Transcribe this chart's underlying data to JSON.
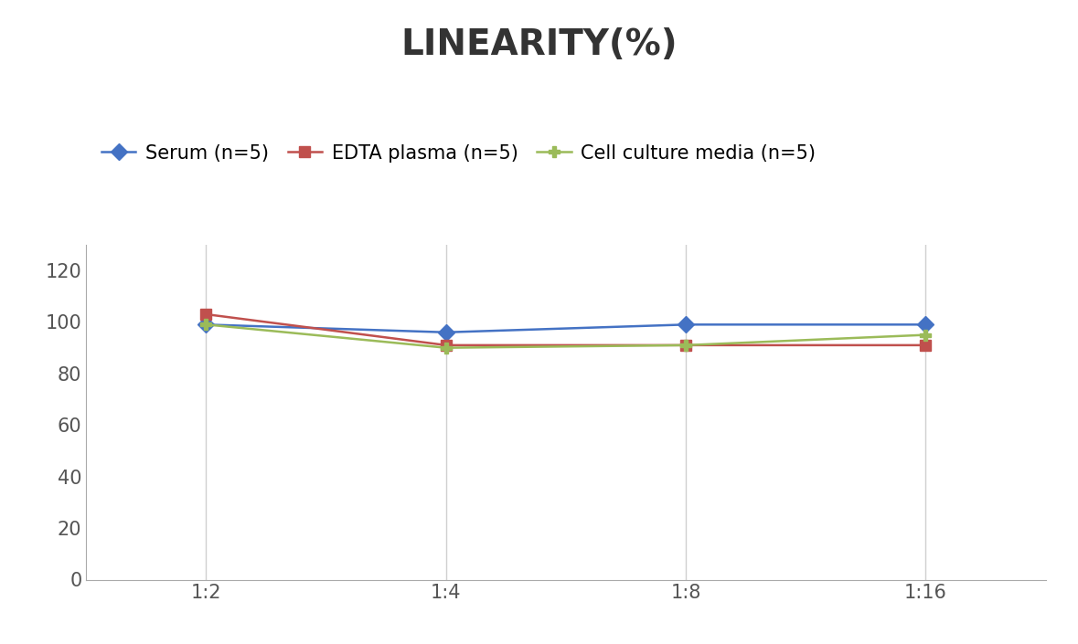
{
  "title": "LINEARITY(%)",
  "x_labels": [
    "1:2",
    "1:4",
    "1:8",
    "1:16"
  ],
  "series": [
    {
      "label": "Serum (n=5)",
      "values": [
        99,
        96,
        99,
        99
      ],
      "color": "#4472C4",
      "marker": "D",
      "marker_color": "#4472C4"
    },
    {
      "label": "EDTA plasma (n=5)",
      "values": [
        103,
        91,
        91,
        91
      ],
      "color": "#C0504D",
      "marker": "s",
      "marker_color": "#C0504D"
    },
    {
      "label": "Cell culture media (n=5)",
      "values": [
        99,
        90,
        91,
        95
      ],
      "color": "#9BBB59",
      "marker": "P",
      "marker_color": "#9BBB59"
    }
  ],
  "ylim": [
    0,
    130
  ],
  "yticks": [
    0,
    20,
    40,
    60,
    80,
    100,
    120
  ],
  "background_color": "#FFFFFF",
  "title_fontsize": 28,
  "legend_fontsize": 15,
  "tick_fontsize": 15,
  "grid_color": "#D0D0D0",
  "line_width": 1.8,
  "marker_size": 9
}
